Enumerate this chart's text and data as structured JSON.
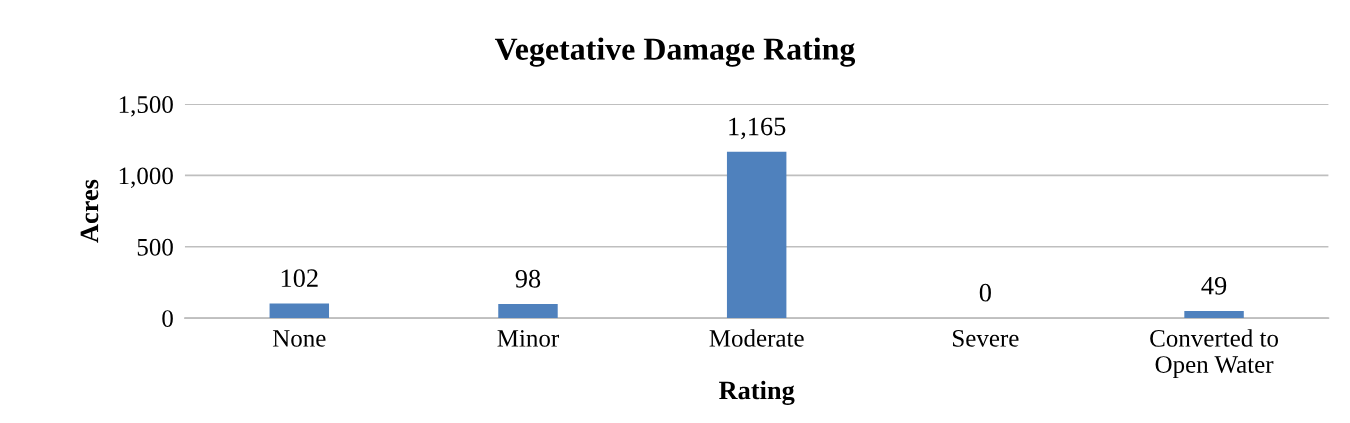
{
  "chart_data": {
    "type": "bar",
    "title": "Vegetative Damage Rating",
    "xlabel": "Rating",
    "ylabel": "Acres",
    "categories": [
      "None",
      "Minor",
      "Moderate",
      "Severe",
      "Converted to\nOpen Water"
    ],
    "values": [
      102,
      98,
      1165,
      0,
      49
    ],
    "value_labels": [
      "102",
      "98",
      "1,165",
      "0",
      "49"
    ],
    "color": "#4f81bd",
    "ylim": [
      0,
      1500
    ],
    "yticks": [
      0,
      {
        "value": 500,
        "label": "500"
      },
      {
        "value": 1000,
        "label": "1,000"
      },
      {
        "value": 1500,
        "label": "1,500"
      }
    ],
    "grid": "y",
    "legend": false
  }
}
